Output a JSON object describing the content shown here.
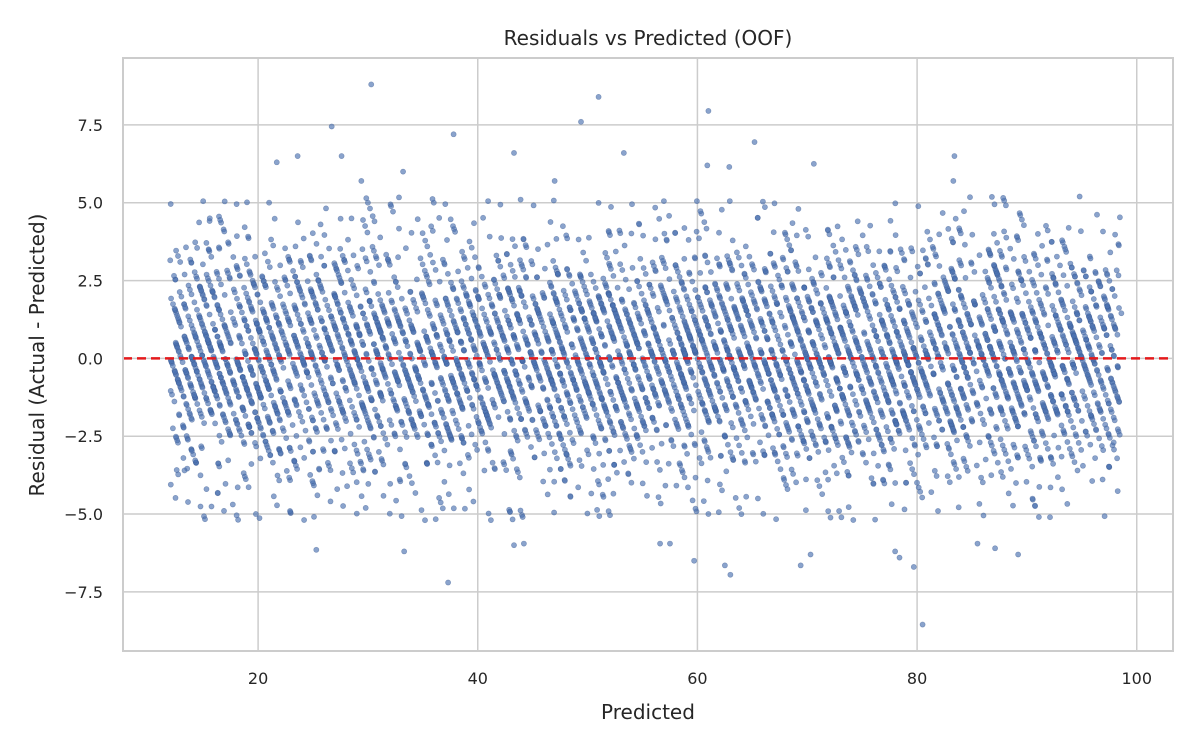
{
  "chart_data": {
    "type": "scatter",
    "title": "Residuals vs Predicted (OOF)",
    "xlabel": "Predicted",
    "ylabel": "Residual (Actual - Predicted)",
    "xlim": [
      7.7,
      103.3
    ],
    "ylim": [
      -9.4,
      9.65
    ],
    "x_ticks": [
      20,
      40,
      60,
      80,
      100
    ],
    "y_ticks": [
      -7.5,
      -5.0,
      -2.5,
      0.0,
      2.5,
      5.0,
      7.5
    ],
    "x_tick_labels": [
      "20",
      "40",
      "60",
      "80",
      "100"
    ],
    "y_tick_labels": [
      "−7.5",
      "−5.0",
      "−2.5",
      "0.0",
      "2.5",
      "5.0",
      "7.5"
    ],
    "grid": true,
    "reference_line": {
      "y": 0,
      "style": "dashed",
      "color": "#e41a1c"
    },
    "point_color": "#4c72b0",
    "point_opacity": 0.65,
    "density": {
      "x_range": [
        12,
        98.5
      ],
      "residual_sd": 2.0,
      "approx_point_count": 6000,
      "note_visible": "dense diagonal banded cloud of points centered on zero residual"
    },
    "outliers": [
      {
        "x": 30.3,
        "y": 8.8
      },
      {
        "x": 51.0,
        "y": 8.4
      },
      {
        "x": 61.0,
        "y": 7.95
      },
      {
        "x": 49.4,
        "y": 7.6
      },
      {
        "x": 26.7,
        "y": 7.45
      },
      {
        "x": 37.8,
        "y": 7.2
      },
      {
        "x": 65.2,
        "y": 6.95
      },
      {
        "x": 43.3,
        "y": 6.6
      },
      {
        "x": 53.3,
        "y": 6.6
      },
      {
        "x": 83.4,
        "y": 6.5
      },
      {
        "x": 27.6,
        "y": 6.5
      },
      {
        "x": 23.6,
        "y": 6.5
      },
      {
        "x": 21.7,
        "y": 6.3
      },
      {
        "x": 70.6,
        "y": 6.25
      },
      {
        "x": 60.9,
        "y": 6.2
      },
      {
        "x": 62.9,
        "y": 6.15
      },
      {
        "x": 33.2,
        "y": 6.0
      },
      {
        "x": 47.0,
        "y": 5.7
      },
      {
        "x": 83.3,
        "y": 5.7
      },
      {
        "x": 29.4,
        "y": 5.7
      },
      {
        "x": 15.0,
        "y": 5.05
      },
      {
        "x": 94.8,
        "y": 5.2
      },
      {
        "x": 15.6,
        "y": 4.5
      },
      {
        "x": 12.0,
        "y": 3.15
      },
      {
        "x": 98.6,
        "y": 1.45
      },
      {
        "x": 13.3,
        "y": -3.6
      },
      {
        "x": 15.3,
        "y": -4.2
      },
      {
        "x": 19.8,
        "y": -5.0
      },
      {
        "x": 25.3,
        "y": -6.15
      },
      {
        "x": 33.3,
        "y": -6.2
      },
      {
        "x": 37.3,
        "y": -7.2
      },
      {
        "x": 43.3,
        "y": -6.0
      },
      {
        "x": 44.2,
        "y": -5.95
      },
      {
        "x": 56.6,
        "y": -5.95
      },
      {
        "x": 57.5,
        "y": -5.95
      },
      {
        "x": 59.7,
        "y": -6.5
      },
      {
        "x": 62.5,
        "y": -6.65
      },
      {
        "x": 63.0,
        "y": -6.95
      },
      {
        "x": 69.4,
        "y": -6.65
      },
      {
        "x": 70.3,
        "y": -6.3
      },
      {
        "x": 78.0,
        "y": -6.2
      },
      {
        "x": 78.4,
        "y": -6.4
      },
      {
        "x": 79.7,
        "y": -6.7
      },
      {
        "x": 80.5,
        "y": -8.55
      },
      {
        "x": 85.5,
        "y": -5.95
      },
      {
        "x": 89.2,
        "y": -6.3
      },
      {
        "x": 95.1,
        "y": -3.45
      },
      {
        "x": 97.9,
        "y": -2.7
      },
      {
        "x": 87.1,
        "y": -6.1
      }
    ]
  }
}
